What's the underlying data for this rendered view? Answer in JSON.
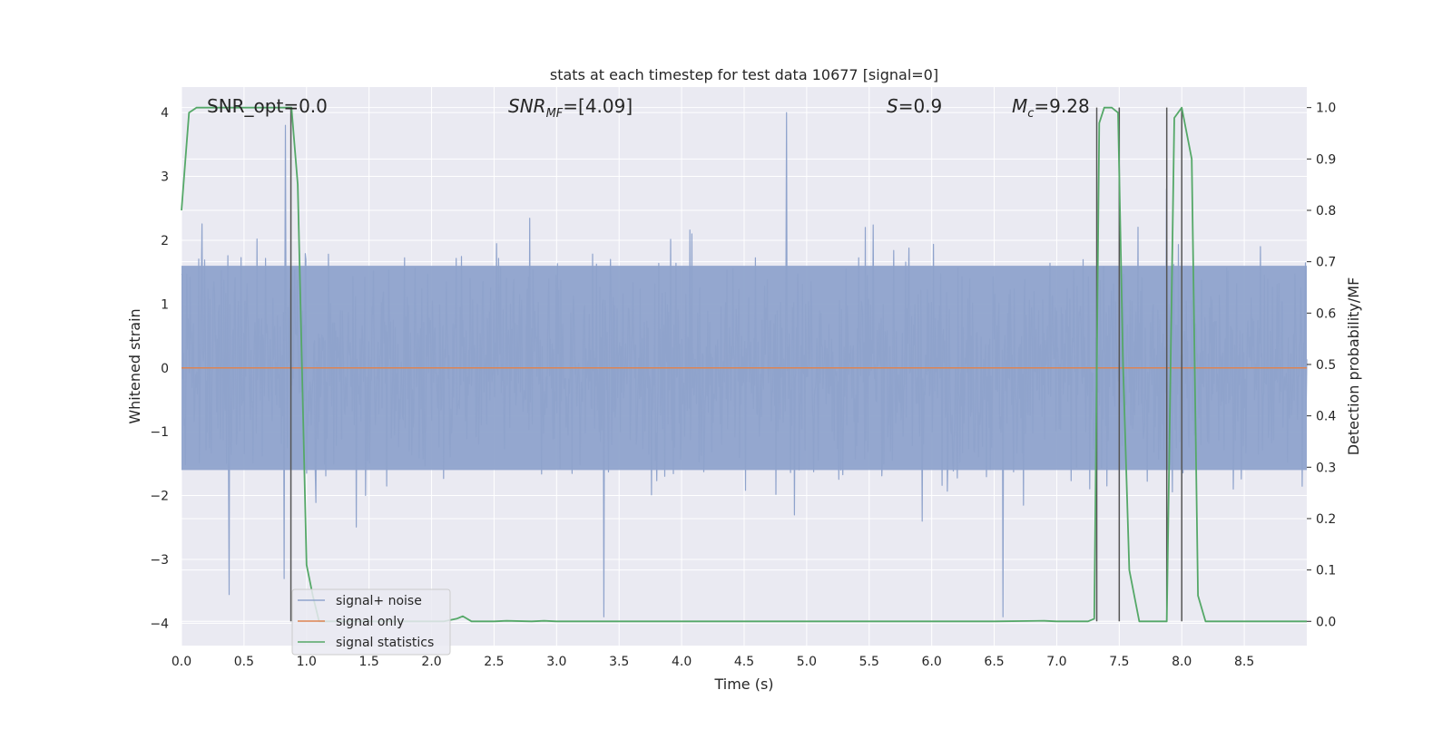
{
  "chart_data": {
    "type": "line",
    "title": "stats at each timestep for test data 10677 [signal=0]",
    "xlabel": "Time (s)",
    "ylabel": "Whitened strain",
    "ylabel_right": "Detection probability/MF",
    "xlim": [
      0.0,
      9.0
    ],
    "ylim": [
      -4.35,
      4.4
    ],
    "ylim_right": [
      -0.04717,
      1.04
    ],
    "x_ticks": [
      "0.0",
      "0.5",
      "1.0",
      "1.5",
      "2.0",
      "2.5",
      "3.0",
      "3.5",
      "4.0",
      "4.5",
      "5.0",
      "5.5",
      "6.0",
      "6.5",
      "7.0",
      "7.5",
      "8.0",
      "8.5"
    ],
    "y_ticks": [
      "−4",
      "−3",
      "−2",
      "−1",
      "0",
      "1",
      "2",
      "3",
      "4"
    ],
    "y_ticks_right": [
      "0.0",
      "0.1",
      "0.2",
      "0.3",
      "0.4",
      "0.5",
      "0.6",
      "0.7",
      "0.8",
      "0.9",
      "1.0"
    ],
    "grid": true,
    "legend_position": "lower-left",
    "annotations": {
      "snr_opt": "SNR_opt=0.0",
      "snr_mf_pre": "SNR",
      "snr_mf_sub": "MF",
      "snr_mf_post": "=[4.09]",
      "s_pre": "S",
      "s_post": "=0.9",
      "mc_pre": "M",
      "mc_sub": "c",
      "mc_post": "=9.28"
    },
    "series": [
      {
        "name": "signal+ noise",
        "color": "#8fa3cc",
        "envelope": {
          "typical_range": [
            -1.6,
            1.6
          ],
          "extremes": [
            {
              "x": 0.83,
              "y": 3.8
            },
            {
              "x": 4.84,
              "y": 4.0
            },
            {
              "x": 0.82,
              "y": -3.3
            },
            {
              "x": 3.38,
              "y": -3.9
            },
            {
              "x": 6.57,
              "y": -3.9
            },
            {
              "x": 7.88,
              "y": 2.8
            },
            {
              "x": 0.38,
              "y": -3.55
            }
          ]
        }
      },
      {
        "name": "signal only",
        "color": "#dd8452",
        "x": [
          0.0,
          9.0
        ],
        "y": [
          0.0,
          0.0
        ]
      },
      {
        "name": "signal statistics",
        "color": "#55a868",
        "axis": "right",
        "x": [
          0.0,
          0.06,
          0.12,
          0.2,
          0.3,
          0.5,
          0.7,
          0.8,
          0.88,
          0.93,
          1.0,
          1.05,
          1.1,
          1.2,
          1.5,
          1.8,
          2.0,
          2.1,
          2.2,
          2.25,
          2.32,
          2.5,
          2.6,
          2.8,
          2.9,
          3.0,
          3.5,
          4.0,
          5.0,
          6.0,
          6.5,
          6.9,
          7.0,
          7.25,
          7.3,
          7.34,
          7.38,
          7.44,
          7.49,
          7.53,
          7.58,
          7.66,
          7.72,
          7.8,
          7.85,
          7.88,
          7.94,
          8.0,
          8.08,
          8.13,
          8.19,
          8.3,
          8.5,
          9.0
        ],
        "y": [
          0.8,
          0.99,
          1.0,
          1.0,
          1.0,
          1.0,
          1.0,
          1.0,
          1.0,
          0.85,
          0.11,
          0.05,
          0.0,
          0.0,
          0.0,
          0.0,
          0.0,
          0.0,
          0.005,
          0.01,
          0.0,
          0.0,
          0.001,
          0.0,
          0.001,
          0.0,
          0.0,
          0.0,
          0.0,
          0.0,
          0.0,
          0.001,
          0.0,
          0.0,
          0.005,
          0.97,
          1.0,
          1.0,
          0.99,
          0.5,
          0.1,
          0.0,
          0.0,
          0.0,
          0.0,
          0.0,
          0.98,
          1.0,
          0.9,
          0.05,
          0.0,
          0.0,
          0.0,
          0.0
        ]
      }
    ],
    "vertical_markers": [
      0.875,
      7.32,
      7.5,
      7.88,
      8.0
    ]
  }
}
